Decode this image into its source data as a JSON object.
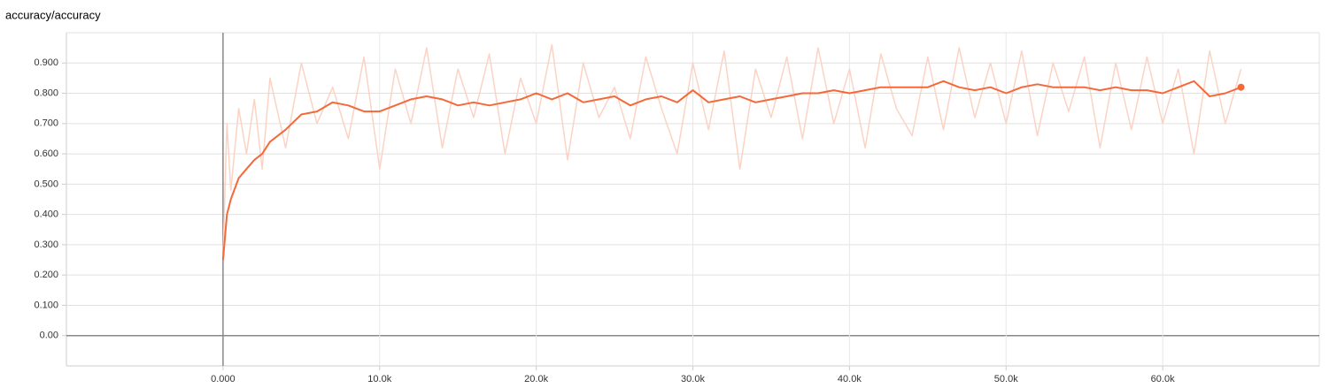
{
  "chart_data": {
    "type": "line",
    "title": "accuracy/accuracy",
    "x": [
      0,
      250,
      500,
      1000,
      1500,
      2000,
      2500,
      3000,
      4000,
      5000,
      6000,
      7000,
      8000,
      9000,
      10000,
      11000,
      12000,
      13000,
      14000,
      15000,
      16000,
      17000,
      18000,
      19000,
      20000,
      21000,
      22000,
      23000,
      24000,
      25000,
      26000,
      27000,
      28000,
      29000,
      30000,
      31000,
      32000,
      33000,
      34000,
      35000,
      36000,
      37000,
      38000,
      39000,
      40000,
      41000,
      42000,
      43000,
      44000,
      45000,
      46000,
      47000,
      48000,
      49000,
      50000,
      51000,
      52000,
      53000,
      54000,
      55000,
      56000,
      57000,
      58000,
      59000,
      60000,
      61000,
      62000,
      63000,
      64000,
      65000
    ],
    "series": [
      {
        "color": "#fbd3c4",
        "values": [
          0.26,
          0.7,
          0.48,
          0.75,
          0.6,
          0.78,
          0.55,
          0.85,
          0.62,
          0.9,
          0.7,
          0.82,
          0.65,
          0.92,
          0.55,
          0.88,
          0.7,
          0.95,
          0.62,
          0.88,
          0.72,
          0.93,
          0.6,
          0.85,
          0.7,
          0.96,
          0.58,
          0.9,
          0.72,
          0.82,
          0.65,
          0.92,
          0.75,
          0.6,
          0.9,
          0.68,
          0.94,
          0.55,
          0.88,
          0.72,
          0.92,
          0.65,
          0.95,
          0.7,
          0.88,
          0.62,
          0.93,
          0.75,
          0.66,
          0.92,
          0.68,
          0.95,
          0.72,
          0.9,
          0.7,
          0.94,
          0.66,
          0.9,
          0.74,
          0.92,
          0.62,
          0.9,
          0.68,
          0.92,
          0.7,
          0.88,
          0.6,
          0.94,
          0.7,
          0.88
        ]
      },
      {
        "color": "#f4693a",
        "values": [
          0.25,
          0.4,
          0.45,
          0.52,
          0.55,
          0.58,
          0.6,
          0.64,
          0.68,
          0.73,
          0.74,
          0.77,
          0.76,
          0.74,
          0.74,
          0.76,
          0.78,
          0.79,
          0.78,
          0.76,
          0.77,
          0.76,
          0.77,
          0.78,
          0.8,
          0.78,
          0.8,
          0.77,
          0.78,
          0.79,
          0.76,
          0.78,
          0.79,
          0.77,
          0.81,
          0.77,
          0.78,
          0.79,
          0.77,
          0.78,
          0.79,
          0.8,
          0.8,
          0.81,
          0.8,
          0.81,
          0.82,
          0.82,
          0.82,
          0.82,
          0.84,
          0.82,
          0.81,
          0.82,
          0.8,
          0.82,
          0.83,
          0.82,
          0.82,
          0.82,
          0.81,
          0.82,
          0.81,
          0.81,
          0.8,
          0.82,
          0.84,
          0.79,
          0.8,
          0.82
        ]
      }
    ],
    "xlim": [
      -10000,
      70000
    ],
    "ylim": [
      -0.1,
      1.0
    ],
    "xticks": [
      {
        "value": 0,
        "label": "0.000"
      },
      {
        "value": 10000,
        "label": "10.0k"
      },
      {
        "value": 20000,
        "label": "20.0k"
      },
      {
        "value": 30000,
        "label": "30.0k"
      },
      {
        "value": 40000,
        "label": "40.0k"
      },
      {
        "value": 50000,
        "label": "50.0k"
      },
      {
        "value": 60000,
        "label": "60.0k"
      }
    ],
    "yticks": [
      {
        "value": 0,
        "label": "0.00"
      },
      {
        "value": 0.1,
        "label": "0.100"
      },
      {
        "value": 0.2,
        "label": "0.200"
      },
      {
        "value": 0.3,
        "label": "0.300"
      },
      {
        "value": 0.4,
        "label": "0.400"
      },
      {
        "value": 0.5,
        "label": "0.500"
      },
      {
        "value": 0.6,
        "label": "0.600"
      },
      {
        "value": 0.7,
        "label": "0.700"
      },
      {
        "value": 0.8,
        "label": "0.800"
      },
      {
        "value": 0.9,
        "label": "0.900"
      }
    ],
    "grid": true
  }
}
